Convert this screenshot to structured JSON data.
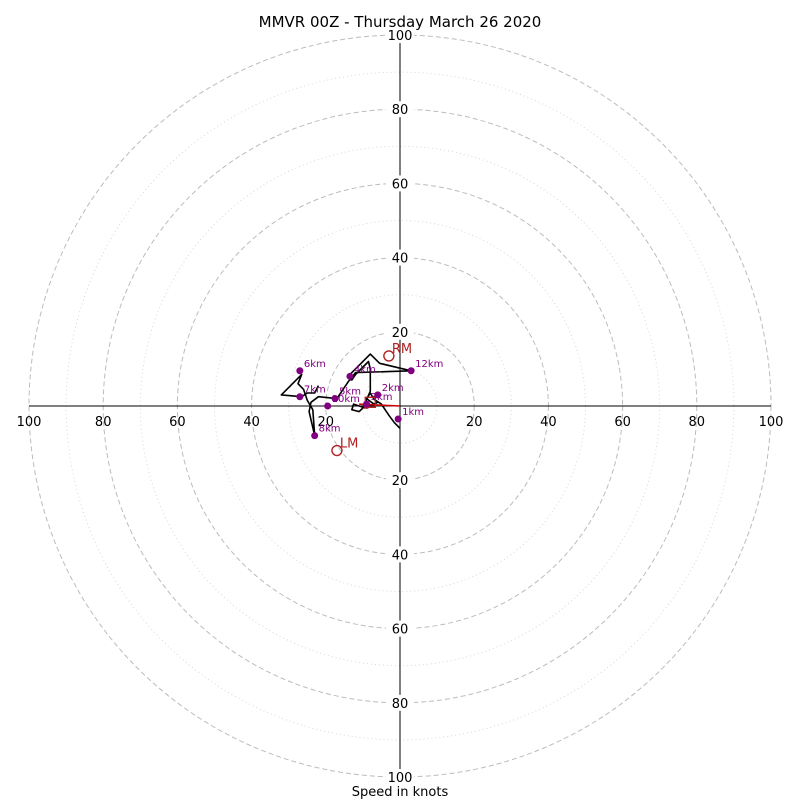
{
  "chart_data": {
    "type": "scatter",
    "title": "MMVR 00Z - Thursday March 26 2020",
    "xlabel": "Speed in knots",
    "ylabel": "",
    "xlim": [
      -100,
      100
    ],
    "ylim": [
      -100,
      100
    ],
    "rings_major": [
      20,
      40,
      60,
      80,
      100
    ],
    "rings_minor": [
      10,
      30,
      50,
      70,
      90
    ],
    "tick_labels": [
      "20",
      "40",
      "60",
      "80",
      "100"
    ],
    "grid": true,
    "hodograph_trace": {
      "color": "#000000",
      "points": [
        [
          0.0,
          -6.0
        ],
        [
          -1.5,
          -4.5
        ],
        [
          -3.0,
          -2.5
        ],
        [
          -5.0,
          0.5
        ],
        [
          -7.0,
          1.8
        ],
        [
          -8.0,
          3.5
        ],
        [
          -9.0,
          2.0
        ],
        [
          -7.0,
          0.5
        ],
        [
          -6.0,
          1.0
        ],
        [
          -9.5,
          -0.5
        ],
        [
          -11.0,
          0.0
        ],
        [
          -12.5,
          0.5
        ],
        [
          -13.0,
          -1.0
        ],
        [
          -11.0,
          -1.5
        ],
        [
          -10.0,
          -0.5
        ],
        [
          -8.0,
          4.0
        ],
        [
          -8.0,
          10.0
        ],
        [
          -8.5,
          12.0
        ],
        [
          -12.0,
          8.5
        ],
        [
          -13.0,
          7.0
        ],
        [
          -14.0,
          8.0
        ],
        [
          -8.0,
          14.0
        ],
        [
          -5.5,
          11.5
        ],
        [
          3.0,
          9.5
        ],
        [
          -12.0,
          9.0
        ],
        [
          -14.0,
          6.5
        ],
        [
          -17.0,
          2.0
        ],
        [
          -22.0,
          2.5
        ],
        [
          -24.0,
          1.0
        ],
        [
          -24.5,
          -1.5
        ],
        [
          -23.0,
          -8.0
        ],
        [
          -23.5,
          -1.0
        ],
        [
          -25.0,
          1.5
        ],
        [
          -26.0,
          4.5
        ],
        [
          -27.5,
          6.0
        ],
        [
          -26.5,
          8.5
        ],
        [
          -32.0,
          3.0
        ],
        [
          -26.5,
          2.5
        ],
        [
          -25.0,
          3.5
        ],
        [
          -23.0,
          3.5
        ],
        [
          -22.0,
          5.5
        ]
      ]
    },
    "height_markers": [
      {
        "label": "1km",
        "x": -0.5,
        "y": -3.5
      },
      {
        "label": "2km",
        "x": -6.0,
        "y": 3.0
      },
      {
        "label": "3km",
        "x": -9.0,
        "y": 0.5
      },
      {
        "label": "4km",
        "x": -13.5,
        "y": 8.0
      },
      {
        "label": "5km",
        "x": -17.5,
        "y": 2.0
      },
      {
        "label": "6km",
        "x": -27.0,
        "y": 9.5
      },
      {
        "label": "7km",
        "x": -27.0,
        "y": 2.5
      },
      {
        "label": "8km",
        "x": -23.0,
        "y": -8.0
      },
      {
        "label": "10km",
        "x": -19.5,
        "y": 0.0
      },
      {
        "label": "12km",
        "x": 3.0,
        "y": 9.5
      }
    ],
    "storm_motion": [
      {
        "label": "RM",
        "x": -3.0,
        "y": 13.5
      },
      {
        "label": "LM",
        "x": -17.0,
        "y": -12.0
      }
    ],
    "mean_wind": {
      "label": "",
      "x": -8.0,
      "y": 1.0
    },
    "mean_line": {
      "color": "#cc0000",
      "from": [
        -11.0,
        0.5
      ],
      "to": [
        0.0,
        0.0
      ]
    },
    "center_marker": {
      "label": "",
      "x": -9.0,
      "y": 0.0
    }
  }
}
